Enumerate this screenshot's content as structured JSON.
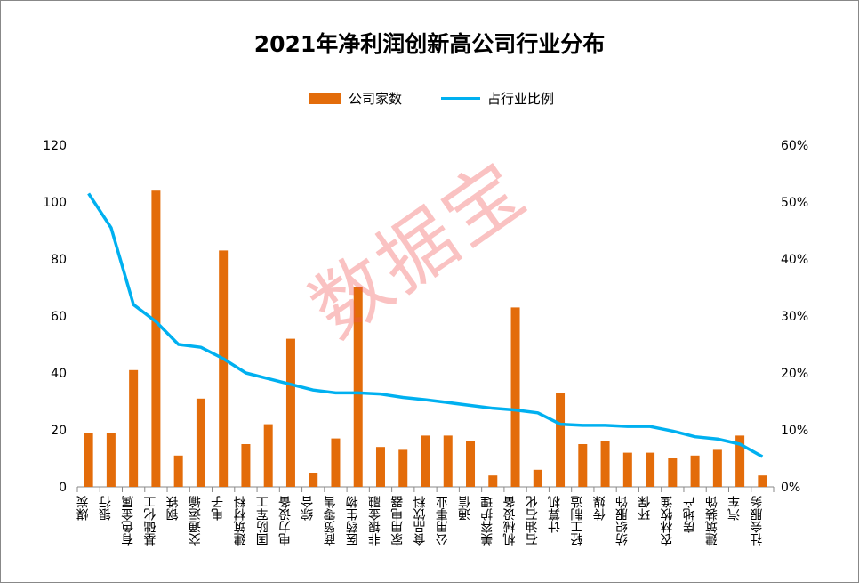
{
  "chart_data": {
    "type": "bar",
    "title": "2021年净利润创新高公司行业分布",
    "legend_position": "top",
    "categories": [
      "煤炭",
      "银行",
      "有色金属",
      "基础化工",
      "钢铁",
      "交通运输",
      "电子",
      "建筑材料",
      "国防军工",
      "电力设备",
      "综合",
      "商贸零售",
      "医药生物",
      "非银金融",
      "家用电器",
      "食品饮料",
      "公用事业",
      "通信",
      "美容护理",
      "机械设备",
      "石油石化",
      "计算机",
      "轻工制造",
      "传媒",
      "纺织服饰",
      "环保",
      "农林牧渔",
      "房地产",
      "建筑装饰",
      "汽车",
      "社会服务"
    ],
    "series": [
      {
        "name": "公司家数",
        "type": "bar",
        "axis": "left",
        "color": "#E36C0A",
        "values": [
          19,
          19,
          41,
          104,
          11,
          31,
          83,
          15,
          22,
          52,
          5,
          17,
          70,
          14,
          13,
          18,
          18,
          16,
          4,
          63,
          6,
          33,
          15,
          16,
          12,
          12,
          10,
          11,
          13,
          18,
          4
        ]
      },
      {
        "name": "占行业比例",
        "type": "line",
        "axis": "right",
        "color": "#00B0F0",
        "values": [
          51.5,
          45.5,
          32,
          29,
          25,
          24.5,
          22.5,
          20,
          19,
          18,
          17,
          16.5,
          16.5,
          16.3,
          15.7,
          15.3,
          14.8,
          14.3,
          13.8,
          13.5,
          13,
          11,
          10.8,
          10.8,
          10.6,
          10.6,
          9.8,
          8.8,
          8.4,
          7.5,
          5.3
        ]
      }
    ],
    "ylim": [
      0,
      120
    ],
    "yticks": [
      "0",
      "20",
      "40",
      "60",
      "80",
      "100",
      "120"
    ],
    "y2lim": [
      0,
      60
    ],
    "y2ticks": [
      "0%",
      "10%",
      "20%",
      "30%",
      "40%",
      "50%",
      "60%"
    ],
    "grid": false
  },
  "watermark": "数据宝"
}
